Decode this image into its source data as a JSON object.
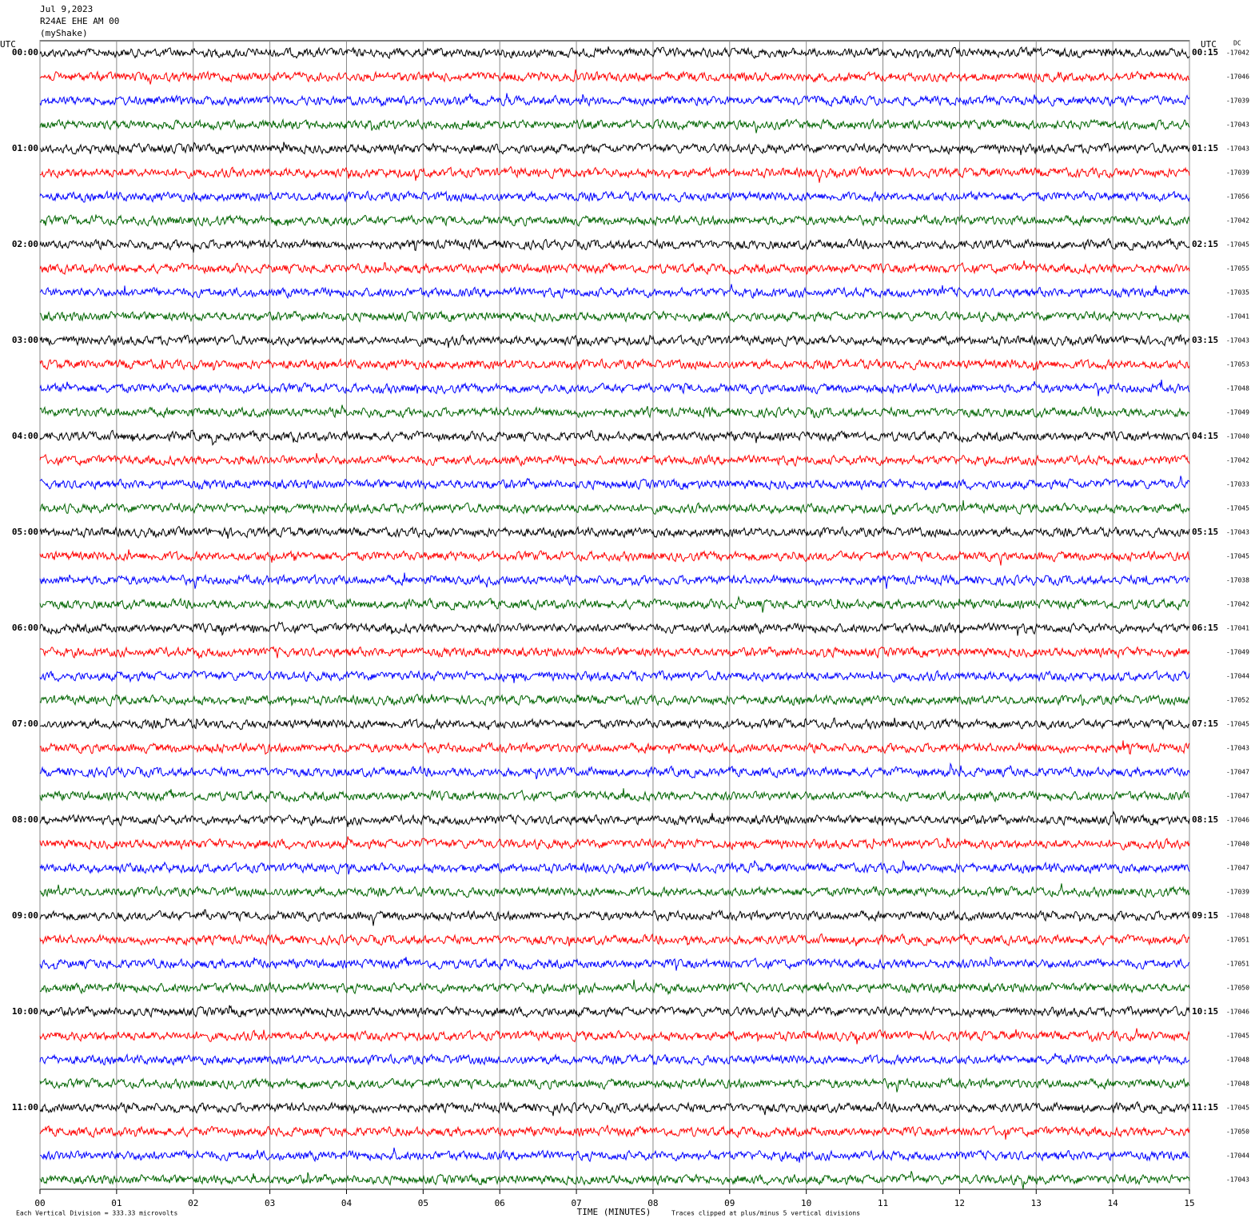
{
  "chart_data": {
    "type": "helicorder",
    "title_lines": [
      "Jul 9,2023",
      "R24AE EHE AM 00",
      "(myShake)"
    ],
    "left_axis_title": "UTC",
    "right_axis_title": "UTC",
    "dc_title": "DC",
    "left_labels": [
      "00:00",
      "01:00",
      "02:00",
      "03:00",
      "04:00",
      "05:00",
      "06:00",
      "07:00",
      "08:00",
      "09:00",
      "10:00",
      "11:00"
    ],
    "right_labels": [
      "00:15",
      "01:15",
      "02:15",
      "03:15",
      "04:15",
      "05:15",
      "06:15",
      "07:15",
      "08:15",
      "09:15",
      "10:15",
      "11:15"
    ],
    "dc_values": [
      -17042,
      -17046,
      -17039,
      -17043,
      -17043,
      -17039,
      -17056,
      -17042,
      -17045,
      -17055,
      -17035,
      -17041,
      -17043,
      -17053,
      -17048,
      -17049,
      -17040,
      -17042,
      -17033,
      -17045,
      -17043,
      -17045,
      -17038,
      -17042,
      -17041,
      -17049,
      -17044,
      -17052,
      -17045,
      -17043,
      -17047,
      -17047,
      -17046,
      -17040,
      -17047,
      -17039,
      -17048,
      -17051,
      -17051,
      -17050,
      -17046,
      -17045,
      -17048,
      -17048,
      -17045,
      -17050,
      -17044,
      -17043
    ],
    "trace_colors": [
      "#000000",
      "#ff0000",
      "#0000ff",
      "#006400"
    ],
    "xlim": [
      0,
      15
    ],
    "xticks": [
      {
        "value": 0,
        "label": "00"
      },
      {
        "value": 1,
        "label": "01"
      },
      {
        "value": 2,
        "label": "02"
      },
      {
        "value": 3,
        "label": "03"
      },
      {
        "value": 4,
        "label": "04"
      },
      {
        "value": 5,
        "label": "05"
      },
      {
        "value": 6,
        "label": "06"
      },
      {
        "value": 7,
        "label": "07"
      },
      {
        "value": 8,
        "label": "08"
      },
      {
        "value": 9,
        "label": "09"
      },
      {
        "value": 10,
        "label": "10"
      },
      {
        "value": 11,
        "label": "11"
      },
      {
        "value": 12,
        "label": "12"
      },
      {
        "value": 13,
        "label": "13"
      },
      {
        "value": 14,
        "label": "14"
      },
      {
        "value": 15,
        "label": "15"
      }
    ],
    "xlabel": "TIME (MINUTES)",
    "scale_note": "Each Vertical Division =  333.33 microvolts",
    "clip_note": "Traces clipped at plus/minus 5 vertical divisions",
    "grid": true
  }
}
